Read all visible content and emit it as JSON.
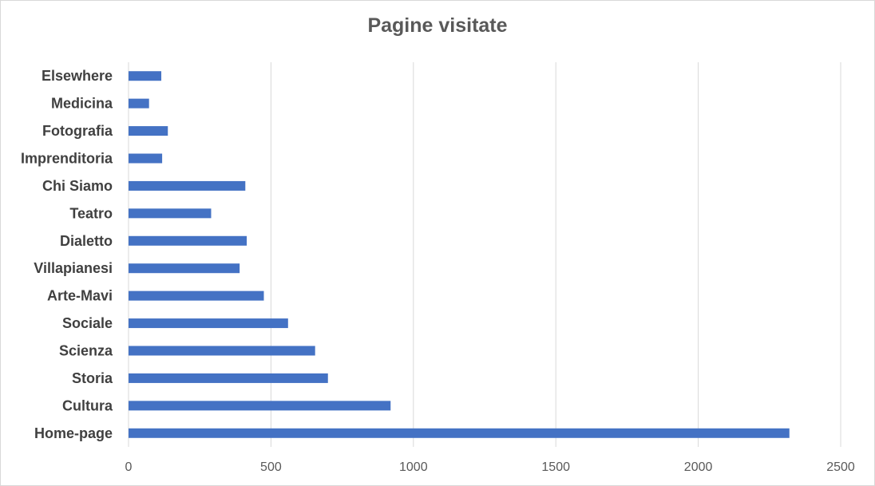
{
  "chart_data": {
    "type": "bar",
    "orientation": "horizontal",
    "title": "Pagine visitate",
    "categories": [
      "Home-page",
      "Cultura",
      "Storia",
      "Scienza",
      "Sociale",
      "Arte-Mavi",
      "Villapianesi",
      "Dialetto",
      "Teatro",
      "Chi Siamo",
      "Imprenditoria",
      "Fotografia",
      "Medicina",
      "Elsewhere"
    ],
    "values": [
      2320,
      920,
      700,
      655,
      560,
      475,
      390,
      415,
      290,
      410,
      118,
      138,
      72,
      115
    ],
    "xlim": [
      0,
      2500
    ],
    "xticks": [
      0,
      500,
      1000,
      1500,
      2000,
      2500
    ],
    "grid": true,
    "legend": "none",
    "bar_color": "#4472c4",
    "grid_color": "#d9d9d9"
  }
}
